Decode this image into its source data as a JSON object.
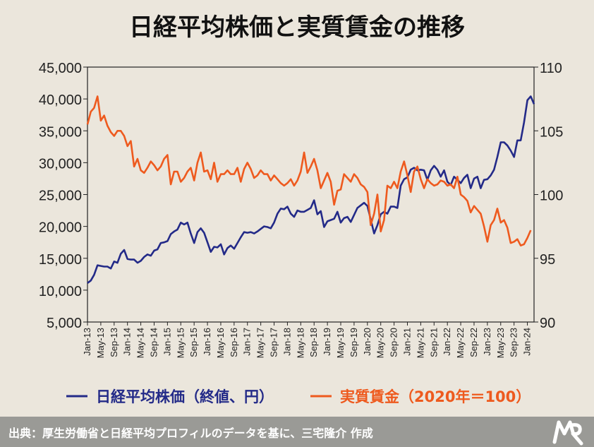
{
  "chart_data": {
    "type": "line",
    "title": "日経平均株価と実質賃金の推移",
    "x_tick_labels": [
      "Jan-13",
      "May-13",
      "Sep-13",
      "Jan-14",
      "May-14",
      "Sep-14",
      "Jan-15",
      "May-15",
      "Sep-15",
      "Jan-16",
      "May-16",
      "Sep-16",
      "Jan-17",
      "May-17",
      "Sep-17",
      "Jan-18",
      "May-18",
      "Sep-18",
      "Jan-19",
      "May-19",
      "Sep-19",
      "Jan-20",
      "May-20",
      "Sep-20",
      "Jan-21",
      "May-21",
      "Sep-21",
      "Jan-22",
      "May-22",
      "Sep-22",
      "Jan-23",
      "May-23",
      "Sep-23",
      "Jan-24"
    ],
    "y_left": {
      "min": 5000,
      "max": 45000,
      "ticks": [
        "5,000",
        "10,000",
        "15,000",
        "20,000",
        "25,000",
        "30,000",
        "35,000",
        "40,000",
        "45,000"
      ]
    },
    "y_right": {
      "min": 90,
      "max": 110,
      "ticks": [
        "90",
        "95",
        "100",
        "105",
        "110"
      ]
    },
    "grid": false,
    "legend_position": "bottom",
    "series": [
      {
        "name": "日経平均株価（終値、円）",
        "axis": "left",
        "color": "#232a88",
        "values": [
          11100,
          11500,
          12400,
          13900,
          13800,
          13700,
          13700,
          13400,
          14500,
          14300,
          15700,
          16300,
          14900,
          14800,
          14800,
          14300,
          14600,
          15200,
          15600,
          15400,
          16200,
          16400,
          17400,
          17500,
          17700,
          18800,
          19200,
          19500,
          20600,
          20300,
          20600,
          18900,
          17400,
          19100,
          19700,
          19000,
          17500,
          16000,
          16800,
          16700,
          17200,
          15600,
          16600,
          17000,
          16500,
          17400,
          18300,
          19100,
          19000,
          19100,
          18900,
          19200,
          19600,
          20000,
          19900,
          19700,
          20600,
          22000,
          22800,
          22700,
          23100,
          22000,
          21500,
          22500,
          22300,
          22300,
          22600,
          22900,
          24100,
          21900,
          22400,
          19900,
          20800,
          21000,
          21200,
          22300,
          20600,
          21300,
          21500,
          20700,
          21800,
          22900,
          23300,
          23700,
          23200,
          21100,
          18900,
          20200,
          21900,
          22300,
          22000,
          23100,
          23100,
          22900,
          26400,
          27400,
          27700,
          28900,
          29200,
          28800,
          28900,
          28800,
          27300,
          28800,
          29500,
          28900,
          27800,
          28800,
          27000,
          26500,
          27800,
          27300,
          26800,
          27600,
          28100,
          26000,
          27500,
          27800,
          26000,
          27300,
          27400,
          28000,
          28900,
          30900,
          33200,
          33200,
          32700,
          31900,
          30900,
          33500,
          33500,
          36300,
          39800,
          40400,
          39200
        ]
      },
      {
        "name": "実質賃金（2020年＝100）",
        "axis": "right",
        "color": "#ee5a1e",
        "values": [
          105.5,
          106.5,
          106.8,
          107.7,
          105.8,
          106.2,
          105.4,
          104.9,
          104.6,
          105.0,
          105.0,
          104.6,
          103.8,
          104.2,
          102.2,
          102.8,
          101.9,
          101.7,
          102.1,
          102.6,
          102.3,
          101.9,
          102.2,
          102.8,
          103.1,
          100.8,
          101.8,
          101.8,
          101.0,
          101.3,
          101.8,
          102.1,
          101.1,
          102.5,
          103.3,
          101.8,
          101.9,
          101.2,
          102.5,
          101.0,
          101.6,
          101.6,
          101.9,
          101.6,
          101.6,
          102.1,
          101.0,
          102.0,
          102.5,
          102.0,
          101.3,
          101.5,
          101.9,
          101.6,
          101.6,
          101.1,
          101.5,
          101.2,
          100.9,
          100.7,
          100.9,
          101.2,
          100.7,
          101.1,
          101.8,
          103.3,
          101.7,
          102.2,
          102.8,
          101.9,
          100.5,
          101.1,
          101.7,
          101.0,
          99.2,
          100.3,
          100.4,
          101.6,
          101.3,
          101.0,
          101.6,
          101.3,
          100.8,
          100.6,
          100.2,
          97.6,
          98.5,
          100.0,
          97.1,
          98.0,
          100.7,
          100.5,
          101.0,
          100.5,
          101.8,
          102.6,
          101.5,
          100.2,
          101.8,
          102.2,
          101.2,
          100.5,
          101.2,
          100.9,
          100.7,
          100.8,
          101.1,
          101.0,
          100.7,
          100.8,
          100.5,
          101.4,
          100.0,
          99.8,
          99.5,
          98.6,
          99.1,
          98.8,
          98.5,
          97.5,
          96.3,
          97.6,
          98.0,
          98.9,
          97.8,
          98.0,
          97.4,
          96.2,
          96.3,
          96.5,
          96.0,
          96.1,
          96.6,
          97.2
        ]
      }
    ]
  },
  "footer": {
    "source": "出典：厚生労働省と日経平均プロフィルのデータを基に、三宅隆介 作成"
  },
  "colors": {
    "background": "#ebe6dc",
    "footer_bar": "#9a9a96",
    "axis": "#222222"
  },
  "icons": {
    "logo": "mr-logo-icon"
  }
}
